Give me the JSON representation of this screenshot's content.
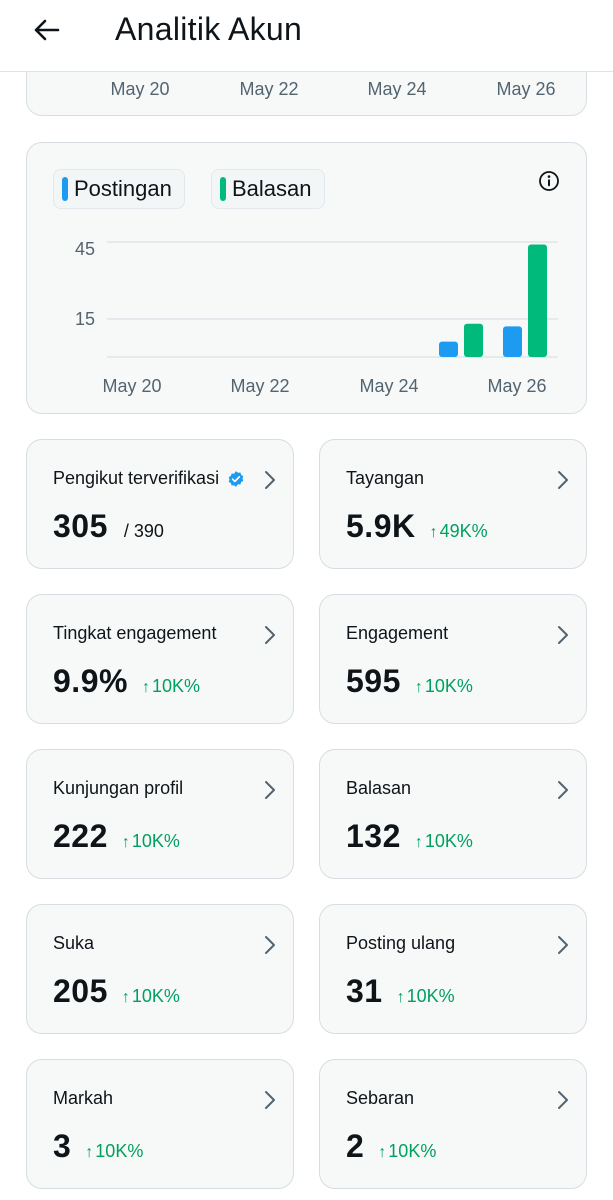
{
  "header": {
    "title": "Analitik Akun"
  },
  "top_chart": {
    "x_labels": [
      "May 20",
      "May 22",
      "May 24",
      "May 26"
    ]
  },
  "colors": {
    "postingan": "#1d9bf0",
    "balasan": "#00ba7c",
    "increase": "#00a060"
  },
  "chart_data": {
    "type": "bar",
    "legend": [
      "Postingan",
      "Balasan"
    ],
    "x_tick_labels": [
      "May 20",
      "May 22",
      "May 24",
      "May 26"
    ],
    "y_tick_labels": [
      "45",
      "15"
    ],
    "ylim": [
      0,
      45
    ],
    "categories": [
      "May 25",
      "May 26"
    ],
    "series": [
      {
        "name": "Postingan",
        "values": [
          6,
          12
        ]
      },
      {
        "name": "Balasan",
        "values": [
          13,
          44
        ]
      }
    ]
  },
  "stats": [
    {
      "label": "Pengikut terverifikasi",
      "value": "305",
      "sub": "/ 390",
      "verified": true
    },
    {
      "label": "Tayangan",
      "value": "5.9K",
      "change": "49K%"
    },
    {
      "label": "Tingkat engagement",
      "value": "9.9%",
      "change": "10K%"
    },
    {
      "label": "Engagement",
      "value": "595",
      "change": "10K%"
    },
    {
      "label": "Kunjungan profil",
      "value": "222",
      "change": "10K%"
    },
    {
      "label": "Balasan",
      "value": "132",
      "change": "10K%"
    },
    {
      "label": "Suka",
      "value": "205",
      "change": "10K%"
    },
    {
      "label": "Posting ulang",
      "value": "31",
      "change": "10K%"
    },
    {
      "label": "Markah",
      "value": "3",
      "change": "10K%"
    },
    {
      "label": "Sebaran",
      "value": "2",
      "change": "10K%"
    }
  ]
}
